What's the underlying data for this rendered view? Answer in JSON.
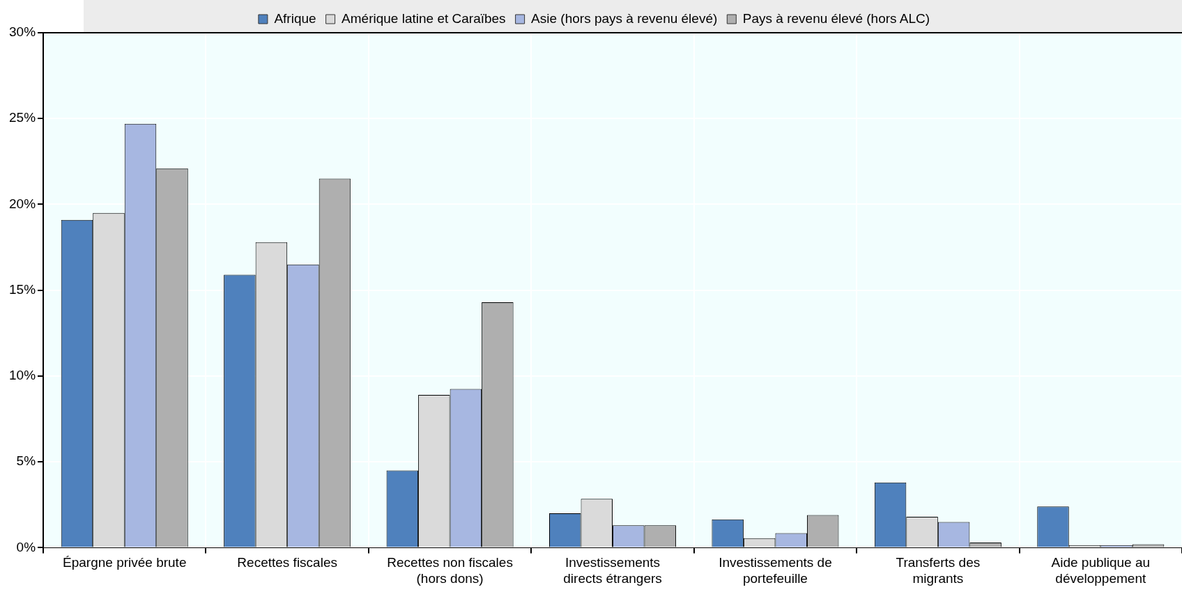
{
  "chart_data": {
    "type": "bar",
    "categories": [
      "Épargne privée brute",
      "Recettes fiscales",
      "Recettes non fiscales (hors dons)",
      "Investissements directs étrangers",
      "Investissements de portefeuille",
      "Transferts des migrants",
      "Aide publique au développement"
    ],
    "series": [
      {
        "name": "Afrique",
        "color": "#4f81bd",
        "values": [
          19.1,
          15.9,
          4.5,
          2.0,
          1.65,
          3.8,
          2.4
        ]
      },
      {
        "name": "Amérique latine et Caraïbes",
        "color": "#dadada",
        "values": [
          19.5,
          17.8,
          8.9,
          2.85,
          0.55,
          1.8,
          0.15
        ]
      },
      {
        "name": "Asie (hors pays à revenu élevé)",
        "color": "#a7b7e1",
        "values": [
          24.7,
          16.5,
          9.25,
          1.3,
          0.85,
          1.5,
          0.15
        ]
      },
      {
        "name": "Pays à revenu élevé (hors ALC)",
        "color": "#afafaf",
        "values": [
          22.1,
          21.5,
          14.3,
          1.3,
          1.9,
          0.3,
          0.2
        ]
      }
    ],
    "ylim": [
      0,
      30
    ],
    "yticks": [
      {
        "value": 0,
        "label": "0%"
      },
      {
        "value": 5,
        "label": "5%"
      },
      {
        "value": 10,
        "label": "10%"
      },
      {
        "value": 15,
        "label": "15%"
      },
      {
        "value": 20,
        "label": "20%"
      },
      {
        "value": 25,
        "label": "25%"
      },
      {
        "value": 30,
        "label": "30%"
      }
    ],
    "grid": true,
    "legend": "top"
  }
}
